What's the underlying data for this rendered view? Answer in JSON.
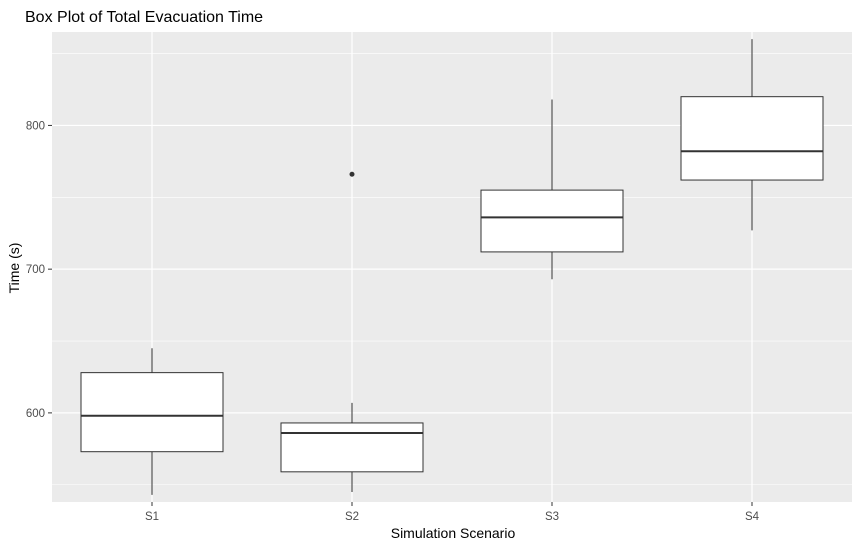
{
  "chart_data": {
    "type": "boxplot",
    "title": "Box Plot of Total Evacuation Time",
    "xlabel": "Simulation Scenario",
    "ylabel": "Time (s)",
    "ylim": [
      538,
      865
    ],
    "y_major_ticks": [
      600,
      700,
      800
    ],
    "y_minor_ticks": [
      550,
      650,
      750,
      850
    ],
    "categories": [
      "S1",
      "S2",
      "S3",
      "S4"
    ],
    "boxes": [
      {
        "category": "S1",
        "whisker_low": 543,
        "q1": 573,
        "median": 598,
        "q3": 628,
        "whisker_high": 645,
        "outliers": []
      },
      {
        "category": "S2",
        "whisker_low": 545,
        "q1": 559,
        "median": 586,
        "q3": 593,
        "whisker_high": 607,
        "outliers": [
          766
        ]
      },
      {
        "category": "S3",
        "whisker_low": 693,
        "q1": 712,
        "median": 736,
        "q3": 755,
        "whisker_high": 818,
        "outliers": []
      },
      {
        "category": "S4",
        "whisker_low": 727,
        "q1": 762,
        "median": 782,
        "q3": 820,
        "whisker_high": 860,
        "outliers": []
      }
    ],
    "grid": true,
    "colors": {
      "panel": "#ebebeb",
      "grid": "#ffffff",
      "box_fill": "#ffffff",
      "box_stroke": "#333333"
    }
  }
}
